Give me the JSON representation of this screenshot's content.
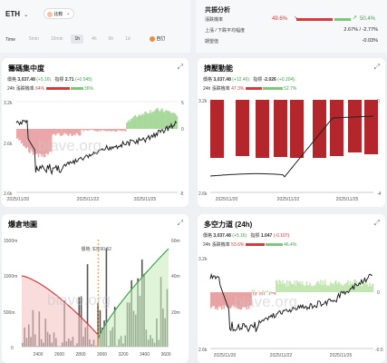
{
  "toolbar": {
    "symbol": "ETH",
    "compare_label": "比較",
    "time_label": "Time",
    "time_options": [
      "5min",
      "15min",
      "1h",
      "4h",
      "6h",
      "1d"
    ],
    "active_time": "1h",
    "custom_label": "自訂"
  },
  "consensus": {
    "title": "共振分析",
    "rows": [
      {
        "label": "漲跌機率",
        "left": "49.6%",
        "right": "50.4%"
      },
      {
        "label": "上漲 / 下跌平均幅度",
        "left": "",
        "right": "2.67% / -2.77%"
      },
      {
        "label": "期望值",
        "left": "",
        "right": "-0.03%"
      }
    ]
  },
  "chip": {
    "title": "籌碼集中度",
    "price_label": "價格",
    "price_value": "3,037.48",
    "price_change": "(+5.16)",
    "metric_label": "指標",
    "metric_value": "2.71",
    "metric_change": "(+0.045)",
    "prob_label": "24h 漲跌機率",
    "prob_down": "64%",
    "prob_up": "36%",
    "y_left": [
      "3.2k",
      "2.6k",
      "2.6k"
    ],
    "y_right": [
      "5",
      "0",
      "-5"
    ],
    "x_labels": [
      "2025/11/20",
      "2025/11/22",
      "2025/11/25"
    ],
    "watermark": "blave.org"
  },
  "momentum": {
    "title": "擠壓動能",
    "price_label": "價格",
    "price_value": "3,037.48",
    "price_change": "(+12.46)",
    "metric_label": "指標",
    "metric_value": "-2.026",
    "metric_change": "(+0.204)",
    "prob_label": "24h 漲跌機率",
    "prob_down": "47.3%",
    "prob_up": "52.7%",
    "y_left": [
      "3.2k",
      "2.6k"
    ],
    "y_right": [
      "0",
      "-4"
    ],
    "x_labels": [
      "2025/11/20",
      "2025/11/22",
      "2025/11/25"
    ]
  },
  "liquidation": {
    "title": "爆倉地圖",
    "price_tag": "價格: $3030.52",
    "y_left": [
      "1500m",
      "1000m",
      "500m",
      "0"
    ],
    "y_right": [
      "60m",
      "40m",
      "20m"
    ],
    "x_labels": [
      "2400",
      "2600",
      "2800",
      "3000",
      "3200",
      "3400",
      "3600"
    ],
    "watermark": "blave.org"
  },
  "longshort": {
    "title": "多空力道 (24h)",
    "price_label": "價格",
    "price_value": "3,037.48",
    "price_change": "(+5.16)",
    "metric_label": "指標",
    "metric_value": "1.047",
    "metric_change": "(-0.107)",
    "prob_label": "24h 漲跌機率",
    "prob_down": "53.6%",
    "prob_up": "46.4%",
    "y_left": [
      "3.2k",
      "2.6k"
    ],
    "y_right": [
      "0",
      "-0.5"
    ],
    "x_labels": [
      "2025/11/20",
      "2025/11/22",
      "2025/11/25"
    ],
    "watermark": "blave.org"
  },
  "colors": {
    "red": "#d23c3c",
    "green": "#3fa34d",
    "dark_red": "#b3262b",
    "orange": "#f08a3c"
  }
}
